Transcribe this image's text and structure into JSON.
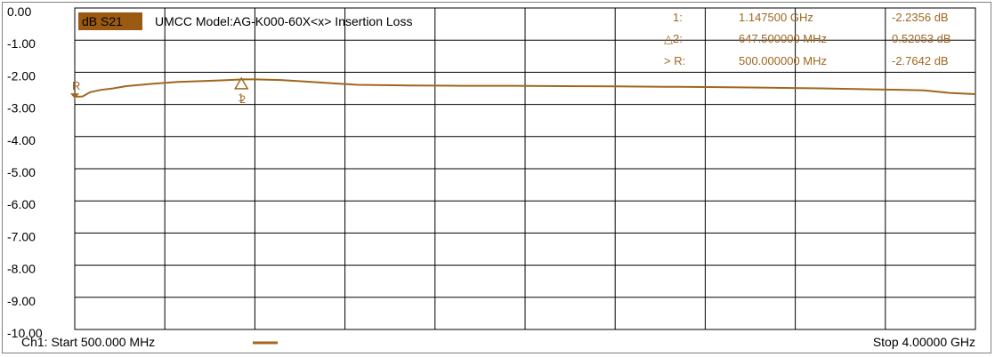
{
  "trace": {
    "param_label": "dB S21",
    "title": "UMCC Model:AG-K000-60X<x> Insertion Loss"
  },
  "markers": [
    {
      "label": "1:",
      "freq": "1.147500 GHz",
      "value": "-2.2356 dB"
    },
    {
      "label": "△2:",
      "freq": "647.500000 MHz",
      "value": "0.52053 dB"
    },
    {
      "label": "> R:",
      "freq": "500.000000 MHz",
      "value": "-2.7642 dB"
    }
  ],
  "footer": {
    "start": "Ch1: Start  500.000 MHz",
    "stop": "Stop  4.00000 GHz"
  },
  "colors": {
    "trace": "#a0661e",
    "param_bg": "#9a5a12",
    "grid": "#000000"
  },
  "chart_data": {
    "type": "line",
    "title": "UMCC Model:AG-K000-60X<x> Insertion Loss",
    "xlabel": "",
    "ylabel": "",
    "x_unit": "GHz",
    "y_unit": "dB",
    "xlim": [
      0.5,
      4.0
    ],
    "ylim": [
      -10.0,
      0.0
    ],
    "grid": true,
    "yticks": [
      "0.00",
      "-1.00",
      "-2.00",
      "-3.00",
      "-4.00",
      "-5.00",
      "-6.00",
      "-7.00",
      "-8.00",
      "-9.00",
      "-10.00"
    ],
    "series": [
      {
        "x": [
          0.5,
          0.53,
          0.56,
          0.6,
          0.65,
          0.7,
          0.8,
          0.9,
          1.0,
          1.1,
          1.15,
          1.2,
          1.3,
          1.4,
          1.5,
          1.6,
          1.8,
          2.0,
          2.2,
          2.4,
          2.6,
          2.8,
          3.0,
          3.2,
          3.4,
          3.6,
          3.8,
          3.9,
          4.0
        ],
        "y": [
          -2.76,
          -2.75,
          -2.62,
          -2.55,
          -2.5,
          -2.43,
          -2.36,
          -2.3,
          -2.27,
          -2.24,
          -2.22,
          -2.22,
          -2.24,
          -2.29,
          -2.34,
          -2.39,
          -2.41,
          -2.42,
          -2.42,
          -2.43,
          -2.44,
          -2.45,
          -2.46,
          -2.48,
          -2.5,
          -2.53,
          -2.56,
          -2.64,
          -2.68
        ]
      }
    ],
    "markers": [
      {
        "label": "R",
        "x": 0.5,
        "y": -2.7642
      },
      {
        "label": "1",
        "x": 1.1475,
        "y": -2.2356
      },
      {
        "label": "2",
        "x": 1.1475,
        "y": -2.2437
      }
    ]
  }
}
